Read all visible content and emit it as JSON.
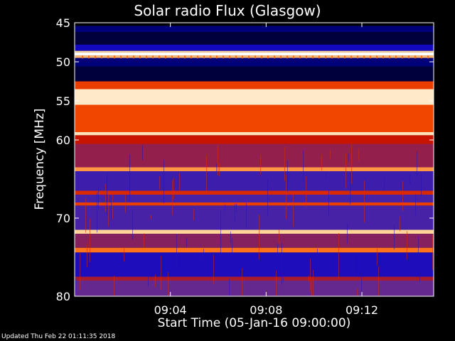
{
  "chart_data": {
    "type": "heatmap",
    "title": "Solar radio Flux (Glasgow)",
    "xlabel": "Start Time (05-Jan-16 09:00:00)",
    "ylabel": "Frequency [MHz]",
    "ylim": [
      45,
      80
    ],
    "xlim_minutes": [
      0,
      15
    ],
    "x_ticks": [
      {
        "label": "09:04",
        "value": 4
      },
      {
        "label": "09:08",
        "value": 8
      },
      {
        "label": "09:12",
        "value": 12
      }
    ],
    "y_ticks": [
      {
        "label": "45",
        "value": 45
      },
      {
        "label": "50",
        "value": 50
      },
      {
        "label": "55",
        "value": 55
      },
      {
        "label": "60",
        "value": 60
      },
      {
        "label": "70",
        "value": 70
      },
      {
        "label": "80",
        "value": 80
      }
    ],
    "bands": [
      {
        "from": 45.0,
        "to": 45.4,
        "level": 0.0
      },
      {
        "from": 45.4,
        "to": 46.2,
        "level": 0.1
      },
      {
        "from": 46.2,
        "to": 47.8,
        "level": 0.05
      },
      {
        "from": 47.8,
        "to": 48.6,
        "level": 0.2
      },
      {
        "from": 48.6,
        "to": 48.8,
        "level": 0.85
      },
      {
        "from": 48.8,
        "to": 49.2,
        "level": 1.0
      },
      {
        "from": 49.2,
        "to": 49.5,
        "level": 0.8
      },
      {
        "from": 49.5,
        "to": 50.6,
        "level": 0.1
      },
      {
        "from": 50.6,
        "to": 52.5,
        "level": 0.05
      },
      {
        "from": 52.5,
        "to": 53.5,
        "level": 0.6
      },
      {
        "from": 53.5,
        "to": 55.5,
        "level": 0.92
      },
      {
        "from": 55.5,
        "to": 59.0,
        "level": 0.62
      },
      {
        "from": 59.0,
        "to": 59.4,
        "level": 0.9
      },
      {
        "from": 59.4,
        "to": 60.5,
        "level": 0.5
      },
      {
        "from": 60.5,
        "to": 63.5,
        "level": 0.42
      },
      {
        "from": 63.5,
        "to": 64.0,
        "level": 0.75
      },
      {
        "from": 64.0,
        "to": 66.5,
        "level": 0.28
      },
      {
        "from": 66.5,
        "to": 67.0,
        "level": 0.55
      },
      {
        "from": 67.0,
        "to": 68.0,
        "level": 0.3
      },
      {
        "from": 68.0,
        "to": 68.4,
        "level": 0.6
      },
      {
        "from": 68.4,
        "to": 71.5,
        "level": 0.3
      },
      {
        "from": 71.5,
        "to": 72.0,
        "level": 0.85
      },
      {
        "from": 72.0,
        "to": 73.8,
        "level": 0.4
      },
      {
        "from": 73.8,
        "to": 74.4,
        "level": 0.7
      },
      {
        "from": 74.4,
        "to": 77.5,
        "level": 0.22
      },
      {
        "from": 77.5,
        "to": 78.0,
        "level": 0.45
      },
      {
        "from": 78.0,
        "to": 80.0,
        "level": 0.35
      }
    ],
    "colormap": [
      "#000000",
      "#0000c8",
      "#5a2a9e",
      "#c81400",
      "#ff5a00",
      "#ffd28c",
      "#ffffff"
    ]
  },
  "footer": {
    "updated": "Updated Thu Feb 22 01:11:35 2018"
  }
}
